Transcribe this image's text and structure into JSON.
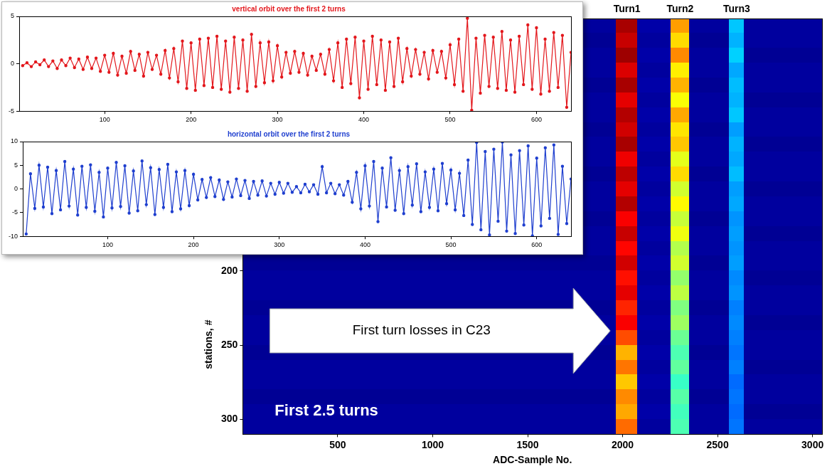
{
  "chart_data": [
    {
      "type": "heatmap",
      "xlabel": "ADC-Sample No.",
      "ylabel": "stations, #",
      "xlim": [
        0,
        3050
      ],
      "xticks": [
        500,
        1000,
        1500,
        2000,
        2500,
        3000
      ],
      "ylim": [
        30,
        310
      ],
      "yticks": [
        200,
        250,
        300
      ],
      "grid": false,
      "x_edges": [
        0,
        1965,
        2080,
        2255,
        2350,
        2560,
        2640,
        3050
      ],
      "x_labels": [
        null,
        "Turn1",
        null,
        "Turn2",
        null,
        "Turn3",
        null
      ],
      "y_edges": [
        30,
        40,
        50,
        60,
        70,
        80,
        90,
        100,
        110,
        120,
        130,
        140,
        150,
        160,
        170,
        180,
        190,
        200,
        210,
        220,
        230,
        240,
        250,
        260,
        270,
        280,
        290,
        300,
        310
      ],
      "zlim": [
        0,
        1
      ],
      "cells": [
        [
          0.03,
          0.96,
          0.04,
          0.72,
          0.03,
          0.32,
          0.03
        ],
        [
          0.02,
          0.93,
          0.03,
          0.66,
          0.02,
          0.3,
          0.03
        ],
        [
          0.03,
          0.97,
          0.04,
          0.74,
          0.03,
          0.33,
          0.02
        ],
        [
          0.03,
          0.91,
          0.03,
          0.64,
          0.03,
          0.29,
          0.03
        ],
        [
          0.02,
          0.96,
          0.04,
          0.7,
          0.02,
          0.31,
          0.03
        ],
        [
          0.03,
          0.9,
          0.03,
          0.62,
          0.03,
          0.3,
          0.02
        ],
        [
          0.03,
          0.95,
          0.04,
          0.71,
          0.03,
          0.32,
          0.03
        ],
        [
          0.02,
          0.92,
          0.03,
          0.65,
          0.02,
          0.28,
          0.03
        ],
        [
          0.03,
          0.96,
          0.04,
          0.68,
          0.03,
          0.3,
          0.02
        ],
        [
          0.03,
          0.89,
          0.03,
          0.6,
          0.03,
          0.29,
          0.03
        ],
        [
          0.02,
          0.94,
          0.04,
          0.66,
          0.02,
          0.31,
          0.03
        ],
        [
          0.03,
          0.9,
          0.03,
          0.58,
          0.03,
          0.28,
          0.02
        ],
        [
          0.03,
          0.95,
          0.04,
          0.63,
          0.03,
          0.29,
          0.03
        ],
        [
          0.02,
          0.88,
          0.03,
          0.57,
          0.02,
          0.27,
          0.03
        ],
        [
          0.03,
          0.93,
          0.04,
          0.61,
          0.03,
          0.28,
          0.02
        ],
        [
          0.03,
          0.87,
          0.03,
          0.55,
          0.03,
          0.27,
          0.03
        ],
        [
          0.02,
          0.92,
          0.04,
          0.58,
          0.02,
          0.28,
          0.03
        ],
        [
          0.03,
          0.86,
          0.03,
          0.52,
          0.03,
          0.26,
          0.02
        ],
        [
          0.03,
          0.9,
          0.04,
          0.56,
          0.03,
          0.27,
          0.03
        ],
        [
          0.02,
          0.84,
          0.03,
          0.5,
          0.02,
          0.25,
          0.03
        ],
        [
          0.03,
          0.88,
          0.04,
          0.53,
          0.03,
          0.26,
          0.02
        ],
        [
          0.03,
          0.8,
          0.03,
          0.48,
          0.03,
          0.25,
          0.03
        ],
        [
          0.02,
          0.7,
          0.04,
          0.45,
          0.02,
          0.24,
          0.03
        ],
        [
          0.03,
          0.76,
          0.03,
          0.47,
          0.03,
          0.25,
          0.02
        ],
        [
          0.03,
          0.68,
          0.04,
          0.43,
          0.03,
          0.23,
          0.03
        ],
        [
          0.02,
          0.74,
          0.03,
          0.46,
          0.02,
          0.24,
          0.03
        ],
        [
          0.03,
          0.71,
          0.04,
          0.44,
          0.03,
          0.23,
          0.02
        ],
        [
          0.03,
          0.77,
          0.03,
          0.45,
          0.03,
          0.24,
          0.03
        ]
      ],
      "annotations": [
        "First turn losses in C23",
        "First 2.5 turns"
      ]
    },
    {
      "type": "line",
      "title": "vertical orbit over the first 2 turns",
      "xlim": [
        1,
        640
      ],
      "xticks": [
        100,
        200,
        300,
        400,
        500,
        600
      ],
      "ylim": [
        -5,
        5
      ],
      "yticks": [
        -5,
        0,
        5
      ],
      "grid": false,
      "x": [
        5,
        10,
        15,
        20,
        25,
        30,
        35,
        40,
        45,
        50,
        55,
        60,
        65,
        70,
        75,
        80,
        85,
        90,
        95,
        100,
        105,
        110,
        115,
        120,
        125,
        130,
        135,
        140,
        145,
        150,
        155,
        160,
        165,
        170,
        175,
        180,
        185,
        190,
        195,
        200,
        205,
        210,
        215,
        220,
        225,
        230,
        235,
        240,
        245,
        250,
        255,
        260,
        265,
        270,
        275,
        280,
        285,
        290,
        295,
        300,
        305,
        310,
        315,
        320,
        325,
        330,
        335,
        340,
        345,
        350,
        355,
        360,
        365,
        370,
        375,
        380,
        385,
        390,
        395,
        400,
        405,
        410,
        415,
        420,
        425,
        430,
        435,
        440,
        445,
        450,
        455,
        460,
        465,
        470,
        475,
        480,
        485,
        490,
        495,
        500,
        505,
        510,
        515,
        520,
        525,
        530,
        535,
        540,
        545,
        550,
        555,
        560,
        565,
        570,
        575,
        580,
        585,
        590,
        595,
        600,
        605,
        610,
        615,
        620,
        625,
        630,
        635,
        640
      ],
      "series": [
        {
          "color": "#e3171c",
          "marker": "dot",
          "line_style": "solid",
          "values": [
            -0.2,
            0.1,
            -0.3,
            0.2,
            -0.1,
            0.4,
            -0.3,
            0.3,
            -0.5,
            0.4,
            -0.2,
            0.6,
            -0.4,
            0.5,
            -0.6,
            0.7,
            -0.5,
            0.6,
            -0.8,
            0.9,
            -0.9,
            1.1,
            -1.2,
            0.8,
            -1.0,
            1.3,
            -0.7,
            1.0,
            -1.3,
            1.2,
            -0.6,
            0.9,
            -1.1,
            1.4,
            -1.5,
            1.6,
            -1.9,
            2.4,
            -2.6,
            2.2,
            -2.8,
            2.6,
            -2.3,
            2.7,
            -2.5,
            2.9,
            -2.7,
            2.4,
            -3.0,
            2.8,
            -2.6,
            2.5,
            -2.9,
            3.1,
            -2.4,
            2.2,
            -2.0,
            2.3,
            -1.8,
            1.9,
            -1.4,
            1.2,
            -1.0,
            1.3,
            -0.9,
            1.1,
            -1.2,
            0.8,
            -0.7,
            1.0,
            -1.1,
            1.5,
            -1.8,
            2.2,
            -2.5,
            2.6,
            -2.1,
            2.8,
            -3.6,
            2.4,
            -2.7,
            2.9,
            -2.2,
            2.5,
            -2.8,
            2.3,
            -2.4,
            2.7,
            -1.9,
            1.6,
            -1.3,
            1.5,
            -1.1,
            1.2,
            -1.6,
            1.4,
            -0.9,
            1.3,
            -1.5,
            2.0,
            -2.2,
            2.6,
            -2.9,
            4.8,
            -4.9,
            2.7,
            -3.1,
            3.0,
            -2.4,
            2.8,
            -2.6,
            3.4,
            -2.8,
            2.5,
            -3.0,
            2.9,
            -2.2,
            4.1,
            -2.7,
            3.8,
            -3.2,
            2.6,
            -2.9,
            3.3,
            -2.5,
            3.0,
            -4.6,
            1.2
          ]
        }
      ]
    },
    {
      "type": "line",
      "title": "horizontal orbit over the first 2 turns",
      "xlim": [
        1,
        640
      ],
      "xticks": [
        100,
        200,
        300,
        400,
        500,
        600
      ],
      "ylim": [
        -10,
        10
      ],
      "yticks": [
        -10,
        -5,
        0,
        5,
        10
      ],
      "grid": false,
      "x": [
        5,
        10,
        15,
        20,
        25,
        30,
        35,
        40,
        45,
        50,
        55,
        60,
        65,
        70,
        75,
        80,
        85,
        90,
        95,
        100,
        105,
        110,
        115,
        120,
        125,
        130,
        135,
        140,
        145,
        150,
        155,
        160,
        165,
        170,
        175,
        180,
        185,
        190,
        195,
        200,
        205,
        210,
        215,
        220,
        225,
        230,
        235,
        240,
        245,
        250,
        255,
        260,
        265,
        270,
        275,
        280,
        285,
        290,
        295,
        300,
        305,
        310,
        315,
        320,
        325,
        330,
        335,
        340,
        345,
        350,
        355,
        360,
        365,
        370,
        375,
        380,
        385,
        390,
        395,
        400,
        405,
        410,
        415,
        420,
        425,
        430,
        435,
        440,
        445,
        450,
        455,
        460,
        465,
        470,
        475,
        480,
        485,
        490,
        495,
        500,
        505,
        510,
        515,
        520,
        525,
        530,
        535,
        540,
        545,
        550,
        555,
        560,
        565,
        570,
        575,
        580,
        585,
        590,
        595,
        600,
        605,
        610,
        615,
        620,
        625,
        630,
        635,
        640
      ],
      "series": [
        {
          "color": "#1f3fcf",
          "marker": "dot",
          "line_style": "solid",
          "values": [
            -9.5,
            3.2,
            -4.1,
            5.0,
            -3.8,
            4.6,
            -5.2,
            3.9,
            -4.4,
            5.8,
            -3.6,
            4.2,
            -5.5,
            4.8,
            -3.9,
            5.1,
            -4.7,
            3.5,
            -5.9,
            4.4,
            -4.0,
            5.6,
            -3.7,
            4.9,
            -5.1,
            3.8,
            -4.6,
            5.9,
            -3.3,
            4.5,
            -5.4,
            4.1,
            -3.9,
            5.2,
            -4.8,
            3.6,
            -4.2,
            3.9,
            -3.5,
            3.1,
            -2.3,
            2.0,
            -1.8,
            2.4,
            -1.6,
            1.9,
            -2.2,
            1.5,
            -1.7,
            2.1,
            -1.4,
            1.8,
            -2.0,
            1.6,
            -1.3,
            1.7,
            -1.5,
            1.2,
            -1.1,
            1.4,
            -0.9,
            1.2,
            -0.7,
            0.5,
            -0.8,
            1.0,
            -0.6,
            0.9,
            -1.1,
            4.7,
            -0.8,
            1.2,
            -1.0,
            0.9,
            -1.3,
            1.6,
            -2.8,
            3.5,
            -4.2,
            4.9,
            -3.6,
            5.8,
            -6.9,
            4.4,
            -3.8,
            6.6,
            -4.5,
            3.9,
            -5.2,
            4.7,
            -3.4,
            5.3,
            -4.8,
            3.6,
            -3.9,
            4.2,
            -4.6,
            5.4,
            -3.1,
            4.0,
            -4.4,
            3.3,
            -5.6,
            6.1,
            -7.5,
            9.8,
            -8.6,
            7.9,
            -9.7,
            8.4,
            -6.8,
            9.9,
            -8.9,
            7.2,
            -9.4,
            8.1,
            -7.6,
            9.1,
            -9.9,
            6.5,
            -7.8,
            8.7,
            -6.2,
            9.3,
            -9.6,
            4.8,
            -7.3,
            2.1
          ]
        }
      ]
    }
  ]
}
